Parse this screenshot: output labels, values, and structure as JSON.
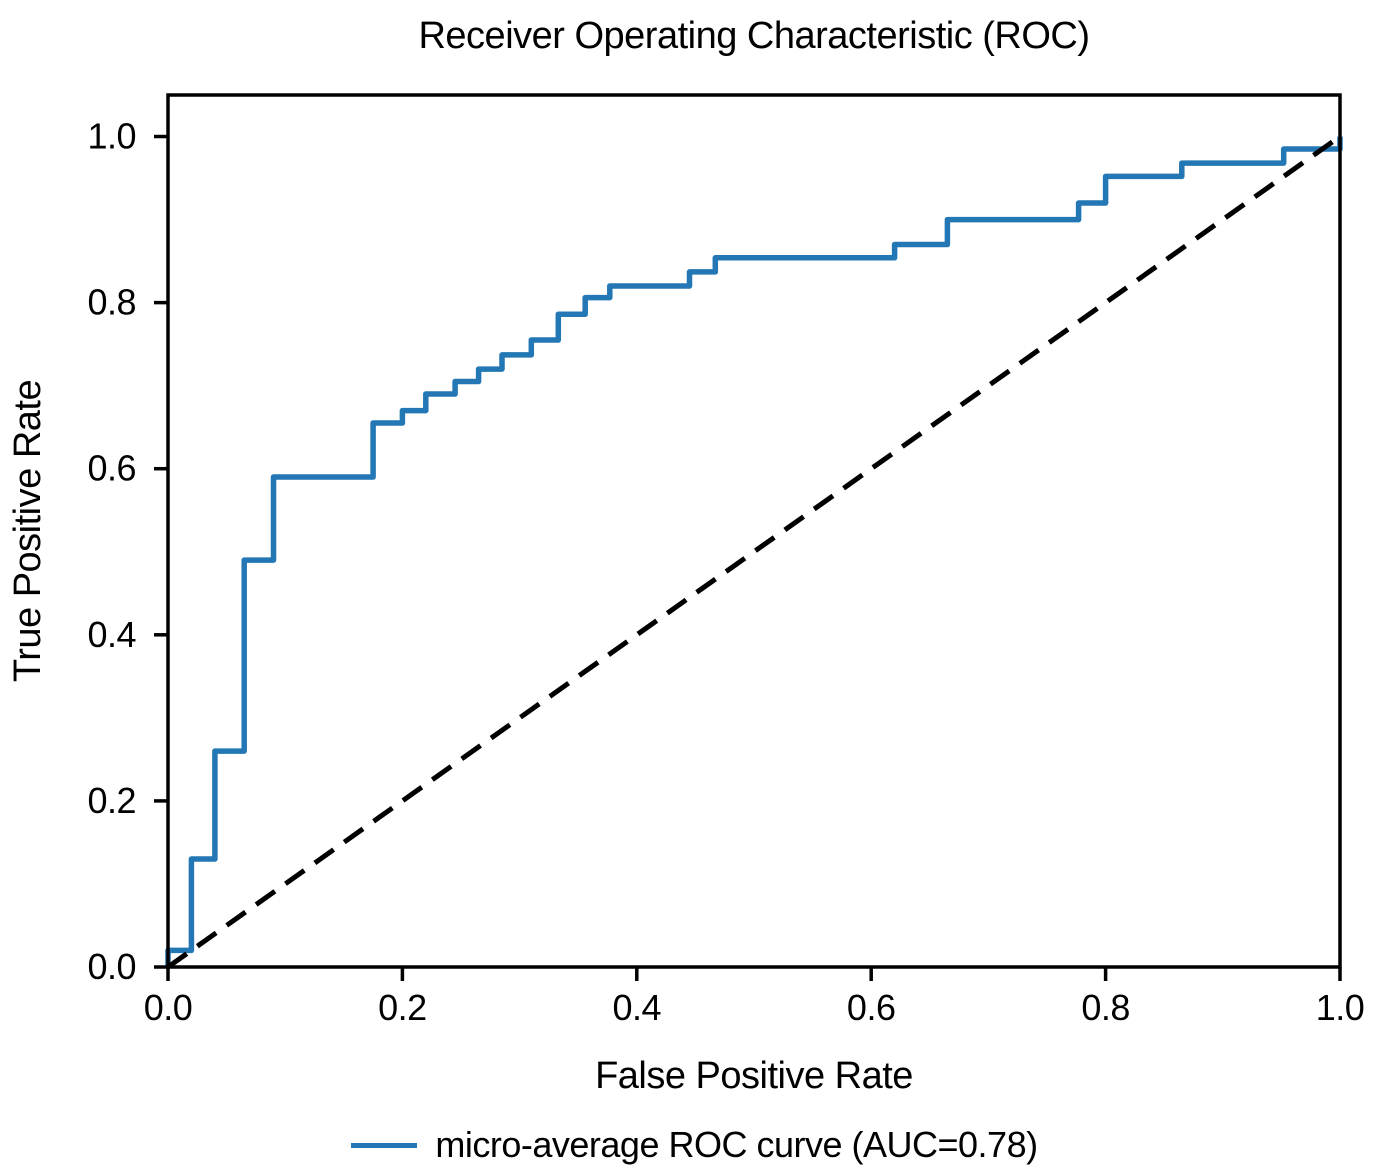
{
  "chart_data": {
    "type": "line",
    "title": "Receiver Operating Characteristic (ROC)",
    "xlabel": "False Positive Rate",
    "ylabel": "True Positive Rate",
    "xlim": [
      0.0,
      1.0
    ],
    "ylim": [
      0.0,
      1.05
    ],
    "x_ticks": [
      0.0,
      0.2,
      0.4,
      0.6,
      0.8,
      1.0
    ],
    "y_ticks": [
      0.0,
      0.2,
      0.4,
      0.6,
      0.8,
      1.0
    ],
    "grid": false,
    "axis_color": "#000000",
    "legend": {
      "position": "below-figure",
      "entries": [
        {
          "label": "micro-average ROC curve (AUC=0.78)",
          "color": "#2277b4",
          "line_style": "solid"
        }
      ]
    },
    "series": [
      {
        "name": "micro-average-roc-curve",
        "auc": 0.78,
        "style": "solid",
        "color": "#2277b4",
        "points": [
          [
            0.0,
            0.0
          ],
          [
            0.0,
            0.02
          ],
          [
            0.02,
            0.02
          ],
          [
            0.02,
            0.13
          ],
          [
            0.04,
            0.13
          ],
          [
            0.04,
            0.26
          ],
          [
            0.065,
            0.26
          ],
          [
            0.065,
            0.49
          ],
          [
            0.09,
            0.49
          ],
          [
            0.09,
            0.59
          ],
          [
            0.175,
            0.59
          ],
          [
            0.175,
            0.655
          ],
          [
            0.2,
            0.655
          ],
          [
            0.2,
            0.67
          ],
          [
            0.22,
            0.67
          ],
          [
            0.22,
            0.69
          ],
          [
            0.245,
            0.69
          ],
          [
            0.245,
            0.705
          ],
          [
            0.265,
            0.705
          ],
          [
            0.265,
            0.72
          ],
          [
            0.285,
            0.72
          ],
          [
            0.285,
            0.737
          ],
          [
            0.31,
            0.737
          ],
          [
            0.31,
            0.755
          ],
          [
            0.333,
            0.755
          ],
          [
            0.333,
            0.786
          ],
          [
            0.356,
            0.786
          ],
          [
            0.356,
            0.806
          ],
          [
            0.377,
            0.806
          ],
          [
            0.377,
            0.82
          ],
          [
            0.445,
            0.82
          ],
          [
            0.445,
            0.837
          ],
          [
            0.467,
            0.837
          ],
          [
            0.467,
            0.854
          ],
          [
            0.62,
            0.854
          ],
          [
            0.62,
            0.87
          ],
          [
            0.665,
            0.87
          ],
          [
            0.665,
            0.9
          ],
          [
            0.777,
            0.9
          ],
          [
            0.777,
            0.92
          ],
          [
            0.8,
            0.92
          ],
          [
            0.8,
            0.952
          ],
          [
            0.865,
            0.952
          ],
          [
            0.865,
            0.968
          ],
          [
            0.952,
            0.968
          ],
          [
            0.952,
            0.985
          ],
          [
            1.0,
            0.985
          ],
          [
            1.0,
            1.0
          ]
        ]
      },
      {
        "name": "chance-diagonal",
        "style": "dashed",
        "color": "#000000",
        "points": [
          [
            0.0,
            0.0
          ],
          [
            1.0,
            1.0
          ]
        ]
      }
    ]
  }
}
